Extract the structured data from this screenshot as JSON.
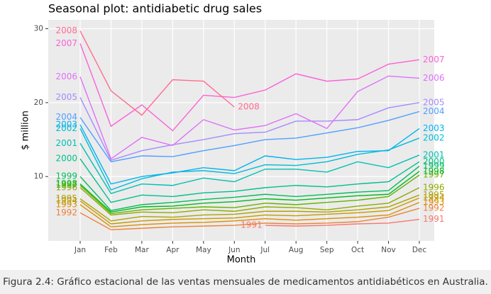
{
  "chart_data": {
    "type": "line",
    "title": "Seasonal plot: antidiabetic drug sales",
    "x_label": "Month",
    "y_label": "$ million",
    "categories": [
      "Jan",
      "Feb",
      "Mar",
      "Apr",
      "May",
      "Jun",
      "Jul",
      "Aug",
      "Sep",
      "Oct",
      "Nov",
      "Dec"
    ],
    "ylim": [
      1.3,
      31.2
    ],
    "yticks": [
      10,
      20,
      30
    ],
    "grid": true,
    "series": [
      {
        "name": "1991",
        "color": "#F8766D",
        "values": [
          null,
          null,
          null,
          null,
          null,
          null,
          3.4,
          3.3,
          3.4,
          3.6,
          3.7,
          4.2
        ]
      },
      {
        "name": "1992",
        "color": "#EC8239",
        "values": [
          5.1,
          2.8,
          3.0,
          3.2,
          3.3,
          3.4,
          3.7,
          3.6,
          3.7,
          3.9,
          4.5,
          5.7
        ]
      },
      {
        "name": "1993",
        "color": "#DB8E00",
        "values": [
          6.2,
          3.2,
          3.5,
          3.7,
          3.8,
          4.0,
          4.3,
          4.1,
          4.3,
          4.5,
          4.8,
          6.5
        ]
      },
      {
        "name": "1994",
        "color": "#C79800",
        "values": [
          6.7,
          3.6,
          4.0,
          4.2,
          4.3,
          4.4,
          4.8,
          4.7,
          4.9,
          5.1,
          5.4,
          7.1
        ]
      },
      {
        "name": "1995",
        "color": "#AEA200",
        "values": [
          7.0,
          4.0,
          4.6,
          4.5,
          4.8,
          4.9,
          5.3,
          5.3,
          5.2,
          5.5,
          5.9,
          7.5
        ]
      },
      {
        "name": "1996",
        "color": "#8FAA00",
        "values": [
          8.5,
          4.8,
          5.2,
          5.1,
          5.5,
          5.3,
          5.9,
          5.8,
          5.5,
          6.0,
          6.4,
          8.5
        ]
      },
      {
        "name": "1997",
        "color": "#64B200",
        "values": [
          8.8,
          5.0,
          5.5,
          5.7,
          5.9,
          5.8,
          6.4,
          6.2,
          6.5,
          6.8,
          7.3,
          10.2
        ]
      },
      {
        "name": "1998",
        "color": "#00B81B",
        "values": [
          9.0,
          5.2,
          5.9,
          6.0,
          6.4,
          6.6,
          7.0,
          6.8,
          7.1,
          7.4,
          7.6,
          10.7
        ]
      },
      {
        "name": "1999",
        "color": "#00BD5C",
        "values": [
          10.0,
          5.4,
          6.2,
          6.5,
          6.9,
          7.2,
          7.6,
          7.3,
          7.6,
          7.9,
          8.1,
          11.4
        ]
      },
      {
        "name": "2000",
        "color": "#00C08B",
        "values": [
          12.4,
          6.5,
          7.5,
          7.3,
          7.8,
          8.0,
          8.5,
          8.8,
          8.6,
          9.0,
          9.3,
          12.0
        ]
      },
      {
        "name": "2001",
        "color": "#00C1B2",
        "values": [
          14.5,
          7.7,
          9.0,
          8.8,
          9.8,
          9.3,
          11.0,
          11.0,
          10.6,
          12.0,
          11.2,
          12.9
        ]
      },
      {
        "name": "2002",
        "color": "#00BCD6",
        "values": [
          16.5,
          8.2,
          9.7,
          10.6,
          10.8,
          10.4,
          11.6,
          11.5,
          12.0,
          13.0,
          13.6,
          15.2
        ]
      },
      {
        "name": "2003",
        "color": "#00B3F2",
        "values": [
          17.0,
          9.0,
          10.0,
          10.5,
          11.2,
          10.8,
          12.8,
          12.3,
          12.6,
          13.4,
          13.5,
          16.5
        ]
      },
      {
        "name": "2004",
        "color": "#529EFF",
        "values": [
          18.0,
          12.0,
          12.8,
          12.7,
          13.5,
          14.2,
          15.0,
          15.2,
          15.9,
          16.6,
          17.6,
          18.8
        ]
      },
      {
        "name": "2005",
        "color": "#A58AFF",
        "values": [
          20.7,
          12.2,
          13.5,
          14.3,
          15.0,
          15.8,
          16.0,
          17.5,
          17.5,
          17.7,
          19.3,
          20.0
        ]
      },
      {
        "name": "2006",
        "color": "#DF70F8",
        "values": [
          23.5,
          12.4,
          15.3,
          14.2,
          17.7,
          16.3,
          16.9,
          18.5,
          16.5,
          21.5,
          23.6,
          23.3
        ]
      },
      {
        "name": "2007",
        "color": "#FB61D7",
        "values": [
          28.0,
          16.8,
          19.7,
          16.2,
          21.0,
          20.7,
          21.7,
          23.9,
          22.9,
          23.2,
          25.2,
          25.8
        ]
      },
      {
        "name": "2008",
        "color": "#FF6C91",
        "values": [
          29.7,
          21.6,
          18.3,
          23.1,
          22.9,
          19.4,
          null,
          null,
          null,
          null,
          null,
          null
        ]
      }
    ],
    "caption": "Figura 2.4: Gráfico estacional de las ventas mensuales de medicamentos antidiabéticos en Australia."
  }
}
